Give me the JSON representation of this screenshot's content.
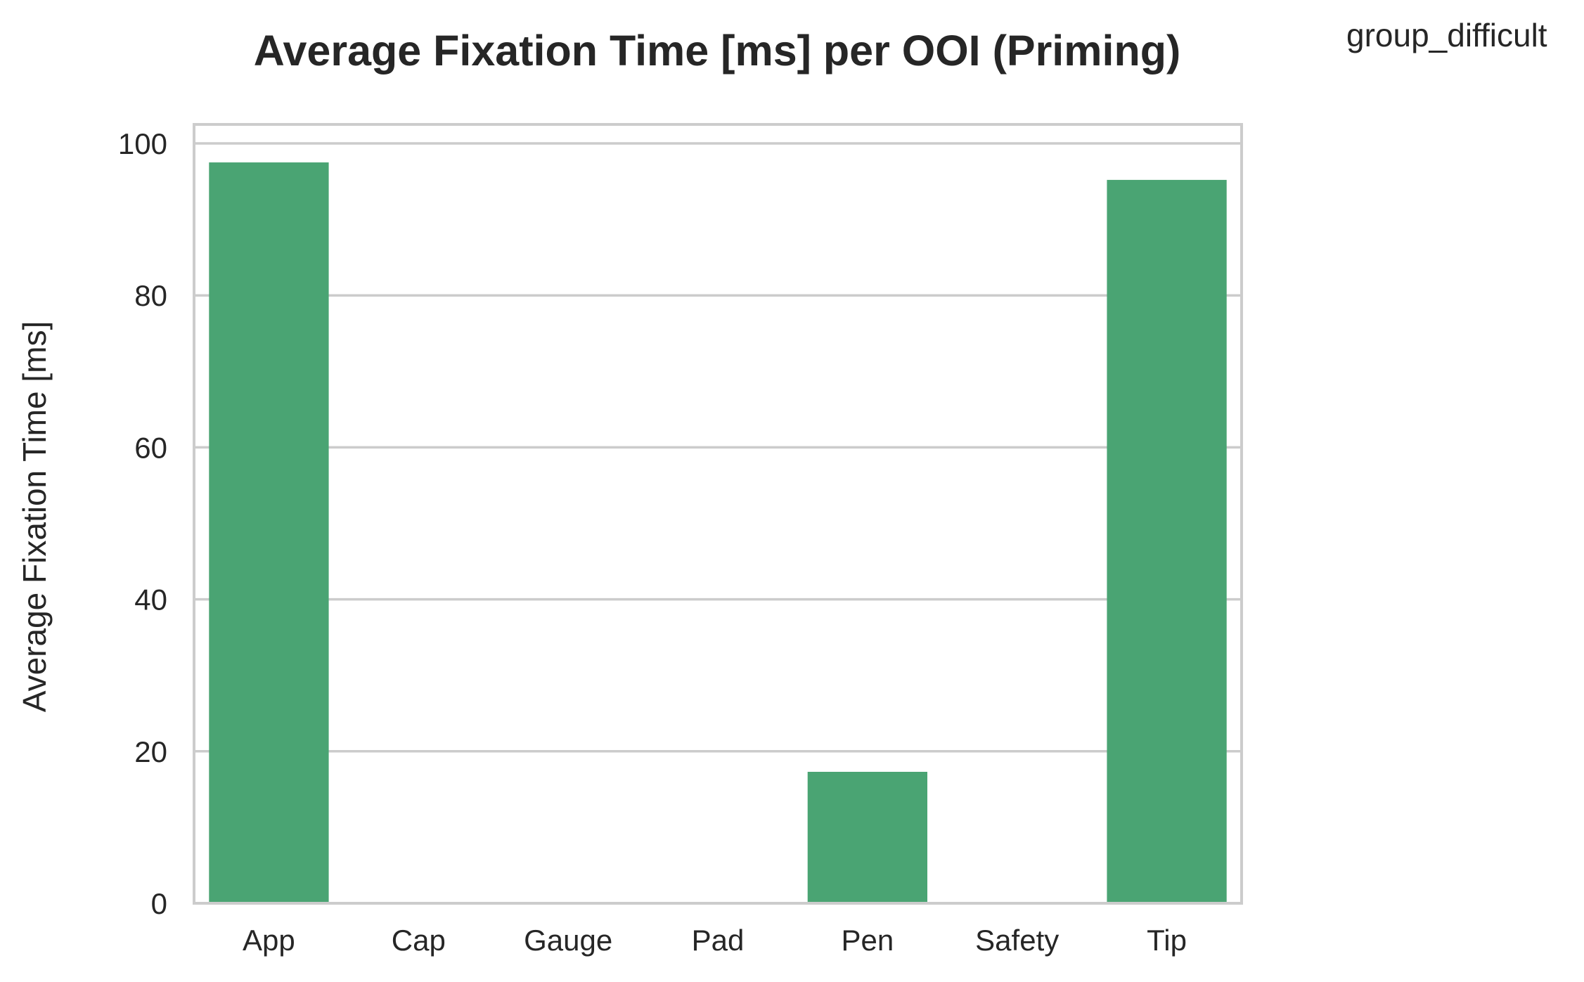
{
  "chart_data": {
    "type": "bar",
    "title": "Average Fixation Time [ms] per OOI (Priming)",
    "legend_label": "group_difficult",
    "legend_placement": "top-right, outside plot",
    "ylabel": "Average Fixation Time [ms]",
    "xlabel": "",
    "categories": [
      "App",
      "Cap",
      "Gauge",
      "Pad",
      "Pen",
      "Safety",
      "Tip"
    ],
    "values": [
      97.5,
      0,
      0,
      0,
      17.3,
      0,
      95.2
    ],
    "ylim": [
      0,
      102.5
    ],
    "yticks": [
      0,
      20,
      40,
      60,
      80,
      100
    ],
    "grid": true,
    "bar_color": "#4aa473",
    "grid_color": "#cccccc"
  }
}
